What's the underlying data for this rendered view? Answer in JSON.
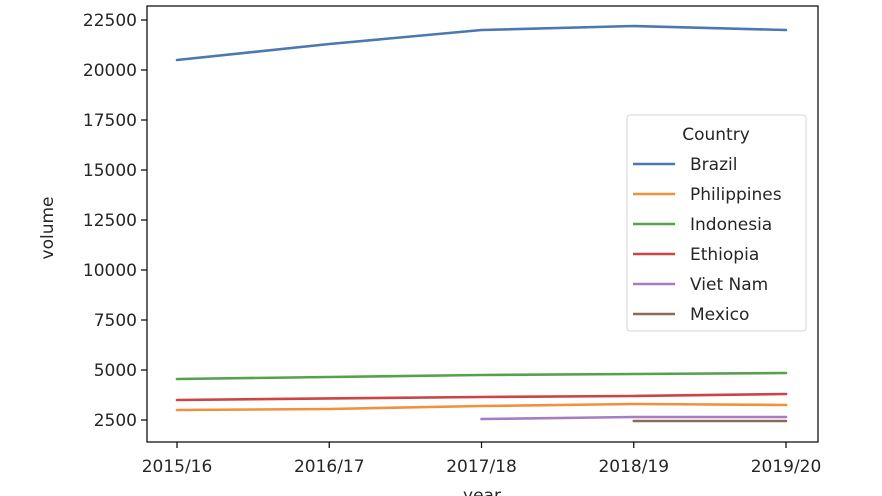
{
  "chart_data": {
    "type": "line",
    "xlabel": "year",
    "ylabel": "volume",
    "categories": [
      "2015/16",
      "2016/17",
      "2017/18",
      "2018/19",
      "2019/20"
    ],
    "ylim": [
      1400,
      23000
    ],
    "yticks": [
      2500,
      5000,
      7500,
      10000,
      12500,
      15000,
      17500,
      20000,
      22500
    ],
    "ytick_labels": [
      "2500",
      "5000",
      "7500",
      "10000",
      "12500",
      "15000",
      "17500",
      "20000",
      "22500"
    ],
    "grid": false,
    "legend": {
      "title": "Country",
      "placement": "center-right"
    },
    "series": [
      {
        "name": "Brazil",
        "color": "#4c78b0",
        "values": [
          20500,
          21300,
          22000,
          22200,
          22000
        ]
      },
      {
        "name": "Philippines",
        "color": "#f0913c",
        "values": [
          3000,
          3050,
          3200,
          3300,
          3250
        ]
      },
      {
        "name": "Indonesia",
        "color": "#55a24a",
        "values": [
          4550,
          4650,
          4750,
          4800,
          4850
        ]
      },
      {
        "name": "Ethiopia",
        "color": "#cc4444",
        "values": [
          3500,
          3580,
          3650,
          3700,
          3800
        ]
      },
      {
        "name": "Viet Nam",
        "color": "#a87cc4",
        "values": [
          null,
          null,
          2550,
          2650,
          2650
        ]
      },
      {
        "name": "Mexico",
        "color": "#8c6a5c",
        "values": [
          null,
          null,
          null,
          2450,
          2450
        ]
      }
    ]
  }
}
